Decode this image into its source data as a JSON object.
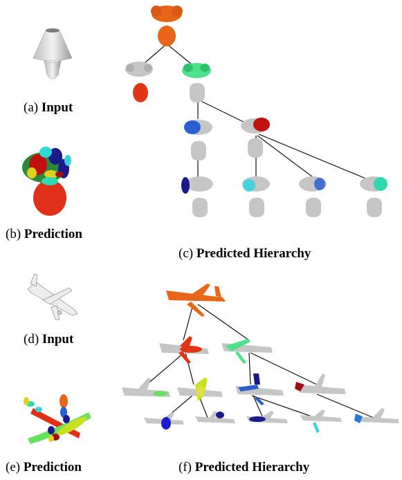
{
  "captions": {
    "a": {
      "prefix": "(a) ",
      "label": "Input"
    },
    "b": {
      "prefix": "(b) ",
      "label": "Prediction"
    },
    "c": {
      "prefix": "(c) ",
      "label": "Predicted Hierarchy"
    },
    "d": {
      "prefix": "(d) ",
      "label": "Input"
    },
    "e": {
      "prefix": "(e) ",
      "label": "Prediction"
    },
    "f": {
      "prefix": "(f) ",
      "label": "Predicted Hierarchy"
    }
  },
  "colors": {
    "root": "#e8661a",
    "gray": "#c6c6c6",
    "red": "#e23515",
    "green": "#4fe08c",
    "blue": "#2a5fd0",
    "navy": "#1a1a8c",
    "cyan": "#3ad0e0",
    "darkred": "#a01010",
    "lime": "#c8e020",
    "teal": "#30d8b0"
  }
}
